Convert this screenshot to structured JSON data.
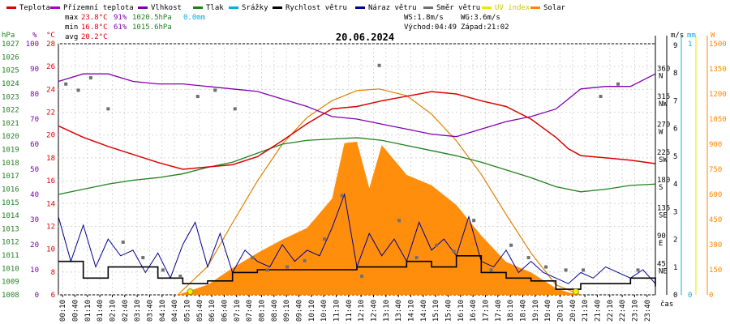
{
  "chart_data": {
    "type": "line",
    "title": "20.06.2024",
    "xlabel": "čas",
    "legend": [
      {
        "name": "Teplota",
        "color": "#dd0000"
      },
      {
        "name": "Přízemní teplota",
        "color": "#a000c8"
      },
      {
        "name": "Vlhkost",
        "color": "#8000b0"
      },
      {
        "name": "Tlak",
        "color": "#208020"
      },
      {
        "name": "Srážky",
        "color": "#00b0e0"
      },
      {
        "name": "Rychlost větru",
        "color": "#000000"
      },
      {
        "name": "Náraz větru",
        "color": "#000090"
      },
      {
        "name": "Směr větru",
        "color": "#707070"
      },
      {
        "name": "UV index",
        "color": "#e8e800"
      },
      {
        "name": "Solar",
        "color": "#ff8800"
      }
    ],
    "stats": {
      "max_label": "max",
      "max_temp": "23.8°C",
      "max_hum": "91%",
      "max_press": "1020.5hPa",
      "rain": "0.0mm",
      "min_label": "min",
      "min_temp": "16.8°C",
      "min_hum": "61%",
      "min_press": "1015.6hPa",
      "avg_label": "avg",
      "avg_temp": "20.2°C",
      "ws": "WS:1.8m/s",
      "wg": "WG:3.6m/s",
      "sunrise": "Východ:04:49",
      "sunset": "Západ:21:02"
    },
    "axes": {
      "hpa_label": "hPa",
      "pct_label": "%",
      "temp_label": "°C",
      "ms_label": "m/s",
      "mm_label": "mm",
      "w_label": "W",
      "hpa_ticks": [
        "1027",
        "1026",
        "1025",
        "1024",
        "1023",
        "1022",
        "1021",
        "1020",
        "1019",
        "1018",
        "1017",
        "1016",
        "1015",
        "1014",
        "1013",
        "1012",
        "1011",
        "1010",
        "1009",
        "1008"
      ],
      "pct_ticks": [
        "100",
        "90",
        "80",
        "70",
        "60",
        "50",
        "40",
        "30",
        "20",
        "10",
        "0"
      ],
      "temp_ticks": [
        "28",
        "26",
        "24",
        "22",
        "20",
        "18",
        "16",
        "14",
        "12",
        "10",
        "8",
        "6"
      ],
      "dir_ticks": [
        {
          "deg": "360",
          "dir": "N"
        },
        {
          "deg": "315",
          "dir": "NW"
        },
        {
          "deg": "270",
          "dir": "W"
        },
        {
          "deg": "225",
          "dir": "SW"
        },
        {
          "deg": "180",
          "dir": "S"
        },
        {
          "deg": "135",
          "dir": "SE"
        },
        {
          "deg": "90",
          "dir": "E"
        },
        {
          "deg": "45",
          "dir": "NE"
        }
      ],
      "ms_ticks": [
        "9",
        "8",
        "7",
        "6",
        "5",
        "4",
        "3",
        "2",
        "1",
        "0"
      ],
      "mm_ticks": [
        "1",
        "0"
      ],
      "w_ticks": [
        "1500",
        "1350",
        "1200",
        "1050",
        "900",
        "750",
        "600",
        "450",
        "300",
        "150",
        "0"
      ],
      "x_ticks": [
        "00:10",
        "00:40",
        "01:10",
        "01:40",
        "02:10",
        "02:40",
        "03:10",
        "03:40",
        "04:10",
        "04:40",
        "05:10",
        "05:40",
        "06:10",
        "06:40",
        "07:10",
        "07:40",
        "08:10",
        "08:40",
        "09:10",
        "09:40",
        "10:10",
        "10:40",
        "11:10",
        "11:40",
        "12:10",
        "12:40",
        "13:10",
        "13:40",
        "14:10",
        "14:40",
        "15:10",
        "15:40",
        "16:10",
        "16:40",
        "17:10",
        "17:40",
        "18:10",
        "18:40",
        "19:10",
        "19:40",
        "20:10",
        "20:40",
        "21:10",
        "21:40",
        "22:10",
        "22:40",
        "23:10",
        "23:40"
      ]
    },
    "ranges": {
      "temp": [
        6,
        28
      ],
      "humidity": [
        0,
        100
      ],
      "pressure": [
        1008,
        1027.5
      ],
      "wind": [
        0,
        9
      ],
      "solar": [
        0,
        1500
      ]
    },
    "series": {
      "temperature": {
        "name": "Teplota",
        "x_hours": [
          0,
          1,
          2,
          3,
          4,
          5,
          6,
          7,
          8,
          9,
          10,
          11,
          12,
          13,
          14,
          15,
          16,
          17,
          18,
          19,
          20,
          20.5,
          21,
          22,
          23,
          24
        ],
        "values": [
          20.8,
          19.8,
          19.0,
          18.3,
          17.6,
          17.0,
          17.2,
          17.4,
          18.1,
          19.5,
          21.0,
          22.3,
          22.5,
          23.0,
          23.4,
          23.8,
          23.6,
          23.0,
          22.5,
          21.4,
          19.8,
          18.8,
          18.2,
          18.0,
          17.8,
          17.5
        ]
      },
      "humidity": {
        "name": "Vlhkost",
        "x_hours": [
          0,
          1,
          2,
          3,
          4,
          5,
          6,
          7,
          8,
          9,
          10,
          11,
          12,
          13,
          14,
          15,
          16,
          17,
          18,
          19,
          20,
          21,
          22,
          23,
          24
        ],
        "values": [
          85,
          88,
          88,
          85,
          84,
          84,
          83,
          82,
          81,
          78,
          75,
          71,
          70,
          68,
          66,
          64,
          63,
          66,
          69,
          71,
          74,
          82,
          83,
          83,
          88
        ]
      },
      "pressure": {
        "name": "Tlak",
        "x_hours": [
          0,
          1,
          2,
          3,
          4,
          5,
          6,
          7,
          8,
          9,
          10,
          11,
          12,
          13,
          14,
          15,
          16,
          17,
          18,
          19,
          20,
          21,
          22,
          23,
          24
        ],
        "values": [
          1015.8,
          1016.2,
          1016.6,
          1016.9,
          1017.1,
          1017.4,
          1017.9,
          1018.3,
          1019.0,
          1019.7,
          1020.0,
          1020.1,
          1020.2,
          1020.0,
          1019.6,
          1019.2,
          1018.8,
          1018.3,
          1017.7,
          1017.1,
          1016.4,
          1016.0,
          1016.2,
          1016.5,
          1016.6
        ]
      },
      "wind_speed": {
        "name": "Rychlost větru",
        "x_hours": [
          0,
          1,
          2,
          3,
          4,
          5,
          6,
          7,
          8,
          9,
          10,
          11,
          12,
          13,
          14,
          15,
          16,
          17,
          18,
          19,
          20,
          21,
          22,
          23,
          24
        ],
        "values": [
          1.2,
          0.6,
          1.0,
          1.0,
          0.6,
          0.4,
          0.5,
          0.8,
          0.9,
          0.9,
          0.9,
          0.9,
          1.0,
          1.0,
          1.2,
          1.0,
          1.4,
          0.8,
          0.6,
          0.5,
          0.2,
          0.4,
          0.4,
          0.6,
          0.3
        ]
      },
      "wind_gust": {
        "name": "Náraz větru",
        "x_hours": [
          0,
          0.5,
          1,
          1.5,
          2,
          2.5,
          3,
          3.5,
          4,
          4.5,
          5,
          5.5,
          6,
          6.5,
          7,
          7.5,
          8,
          8.5,
          9,
          9.5,
          10,
          10.5,
          11,
          11.5,
          12,
          12.5,
          13,
          13.5,
          14,
          14.5,
          15,
          15.5,
          16,
          16.5,
          17,
          17.5,
          18,
          18.5,
          19,
          19.5,
          20,
          20.5,
          21,
          21.5,
          22,
          22.5,
          23,
          23.5,
          24
        ],
        "values": [
          2.8,
          1.2,
          2.5,
          1.0,
          2.0,
          1.4,
          1.6,
          0.8,
          1.5,
          0.6,
          1.8,
          2.6,
          1.0,
          2.2,
          0.8,
          1.6,
          1.2,
          1.0,
          1.8,
          1.2,
          1.6,
          1.4,
          2.4,
          3.6,
          1.0,
          2.2,
          1.4,
          2.0,
          1.2,
          2.6,
          1.6,
          2.0,
          1.4,
          2.8,
          1.2,
          1.0,
          1.6,
          0.8,
          1.2,
          0.8,
          0.6,
          0.4,
          0.8,
          0.6,
          1.0,
          0.8,
          0.6,
          0.9,
          0.4
        ]
      },
      "wind_direction": {
        "name": "Směr větru",
        "x_hours": [
          0.3,
          0.8,
          1.3,
          2.0,
          2.6,
          3.4,
          4.2,
          4.9,
          5.6,
          6.3,
          7.1,
          7.8,
          8.4,
          9.2,
          9.9,
          10.7,
          11.4,
          12.2,
          12.9,
          13.7,
          14.4,
          15.2,
          15.9,
          16.7,
          17.4,
          18.2,
          18.9,
          19.6,
          20.4,
          21.1,
          21.8,
          22.5,
          23.3
        ],
        "values": [
          340,
          330,
          350,
          300,
          85,
          60,
          40,
          30,
          320,
          330,
          300,
          60,
          40,
          45,
          55,
          90,
          160,
          30,
          370,
          120,
          60,
          80,
          70,
          120,
          40,
          80,
          60,
          45,
          40,
          40,
          320,
          340,
          40
        ]
      },
      "solar": {
        "name": "Solar",
        "x_hours": [
          4.8,
          6,
          7,
          8,
          9,
          10,
          11,
          11.5,
          12,
          12.5,
          13,
          14,
          15,
          16,
          17,
          18,
          19,
          20,
          20.5,
          21
        ],
        "values": [
          0,
          60,
          160,
          250,
          330,
          400,
          560,
          950,
          900,
          680,
          880,
          760,
          640,
          580,
          340,
          240,
          120,
          40,
          15,
          0
        ]
      },
      "solar_theoretical": {
        "name": "Solar",
        "x_hours": [
          4.8,
          6,
          7,
          8,
          9,
          10,
          11,
          12,
          12.9,
          14,
          15,
          16,
          17,
          18,
          19,
          20,
          21
        ],
        "values": [
          0,
          170,
          430,
          680,
          900,
          1060,
          1160,
          1220,
          1230,
          1190,
          1080,
          920,
          720,
          480,
          250,
          60,
          0
        ]
      },
      "uv_index": {
        "name": "UV index",
        "x_hours": [
          5.3,
          20.8
        ],
        "values": [
          0,
          0
        ]
      }
    }
  }
}
